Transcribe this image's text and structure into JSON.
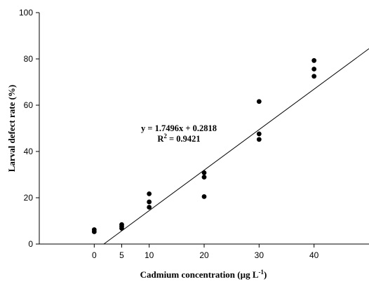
{
  "chart_data": {
    "type": "scatter",
    "title": "",
    "xlabel": "Cadmium concentration (µg L",
    "xlabel_sup": "-1",
    "xlabel_suffix": ")",
    "ylabel": "Larval defect rate (%)",
    "xlim": [
      -10,
      50
    ],
    "ylim": [
      0,
      100
    ],
    "xticks": [
      0,
      5,
      10,
      20,
      30,
      40
    ],
    "xtick_labels": [
      "0",
      "5",
      "10",
      "20",
      "30",
      "40"
    ],
    "yticks": [
      0,
      20,
      40,
      60,
      80,
      100
    ],
    "ytick_labels": [
      "0",
      "20",
      "40",
      "60",
      "80",
      "100"
    ],
    "grid": false,
    "marker_color": "#000000",
    "line_color": "#000000",
    "series": [
      {
        "points": [
          {
            "x": 0,
            "y": 5.3
          },
          {
            "x": 0,
            "y": 6.2
          },
          {
            "x": 5,
            "y": 6.8
          },
          {
            "x": 5,
            "y": 7.6
          },
          {
            "x": 5,
            "y": 8.4
          },
          {
            "x": 10,
            "y": 15.9
          },
          {
            "x": 10,
            "y": 18.2
          },
          {
            "x": 10,
            "y": 21.7
          },
          {
            "x": 20,
            "y": 20.5
          },
          {
            "x": 20,
            "y": 28.9
          },
          {
            "x": 20,
            "y": 30.8
          },
          {
            "x": 30,
            "y": 45.2
          },
          {
            "x": 30,
            "y": 47.6
          },
          {
            "x": 30,
            "y": 61.6
          },
          {
            "x": 40,
            "y": 72.5
          },
          {
            "x": 40,
            "y": 75.6
          },
          {
            "x": 40,
            "y": 79.3
          }
        ]
      }
    ],
    "regression": {
      "slope": 1.7496,
      "intercept": 0.2818,
      "x_start": 1.7496,
      "x_end": 50,
      "equation_text": "y = 1.7496x + 0.2818",
      "r2_prefix": "R",
      "r2_sup": "2",
      "r2_suffix": " = 0.9421"
    }
  }
}
